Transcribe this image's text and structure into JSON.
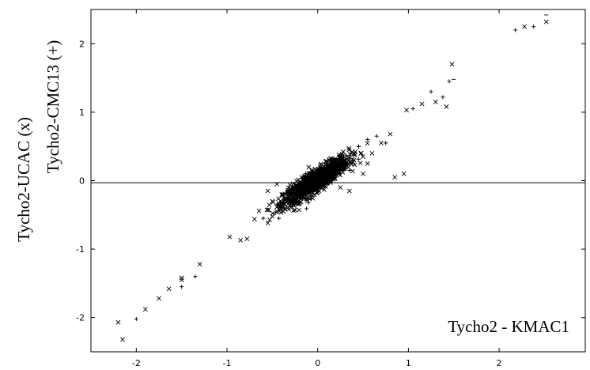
{
  "chart_data": {
    "type": "scatter",
    "title": "",
    "xlabel": "",
    "ylabel_1": "Tycho2-UCAC (x)",
    "ylabel_2": "Tycho2-CMC13 (+)",
    "annotation": "Tycho2 - KMAC1",
    "xlim": [
      -2.5,
      2.95
    ],
    "ylim": [
      -2.5,
      2.5
    ],
    "xticks": [
      -2,
      -1,
      0,
      1,
      2
    ],
    "yticks": [
      -2,
      -1,
      0,
      1,
      2
    ],
    "grid": false,
    "reference_line_y": -0.03,
    "series": [
      {
        "marker": "x",
        "points": [
          [
            -2.15,
            -2.32
          ],
          [
            -2.2,
            -2.07
          ],
          [
            -1.9,
            -1.88
          ],
          [
            -1.75,
            -1.72
          ],
          [
            -1.64,
            -1.58
          ],
          [
            -1.5,
            -1.45
          ],
          [
            -1.5,
            -1.42
          ],
          [
            -1.3,
            -1.22
          ],
          [
            -0.97,
            -0.82
          ],
          [
            -0.85,
            -0.87
          ],
          [
            -0.78,
            -0.85
          ],
          [
            -0.55,
            -0.62
          ],
          [
            -0.5,
            -0.52
          ],
          [
            -0.45,
            -0.45
          ],
          [
            -0.5,
            -0.3
          ],
          [
            -0.55,
            -0.15
          ],
          [
            -0.45,
            -0.05
          ],
          [
            -0.3,
            -0.2
          ],
          [
            -0.2,
            -0.15
          ],
          [
            -0.1,
            -0.08
          ],
          [
            0.0,
            0.0
          ],
          [
            0.1,
            0.05
          ],
          [
            0.2,
            0.1
          ],
          [
            0.3,
            0.2
          ],
          [
            0.4,
            0.3
          ],
          [
            0.5,
            0.35
          ],
          [
            0.55,
            0.25
          ],
          [
            0.6,
            0.4
          ],
          [
            0.7,
            0.55
          ],
          [
            0.25,
            -0.1
          ],
          [
            0.35,
            -0.15
          ],
          [
            0.5,
            0.1
          ],
          [
            0.85,
            0.05
          ],
          [
            0.95,
            0.1
          ],
          [
            0.8,
            0.68
          ],
          [
            0.98,
            1.03
          ],
          [
            1.15,
            1.12
          ],
          [
            1.3,
            1.15
          ],
          [
            1.42,
            1.08
          ],
          [
            1.48,
            1.7
          ],
          [
            2.28,
            2.25
          ],
          [
            2.52,
            2.32
          ]
        ]
      },
      {
        "marker": "+",
        "points": [
          [
            -2.0,
            -2.02
          ],
          [
            -1.5,
            -1.55
          ],
          [
            -1.35,
            -1.4
          ],
          [
            -0.6,
            -0.55
          ],
          [
            -0.45,
            -0.35
          ],
          [
            -0.3,
            -0.3
          ],
          [
            -0.15,
            -0.1
          ],
          [
            -0.05,
            0.05
          ],
          [
            0.05,
            0.0
          ],
          [
            0.15,
            0.15
          ],
          [
            0.25,
            0.25
          ],
          [
            0.35,
            0.15
          ],
          [
            0.45,
            0.5
          ],
          [
            0.55,
            0.6
          ],
          [
            0.65,
            0.65
          ],
          [
            0.75,
            0.55
          ],
          [
            1.05,
            1.05
          ],
          [
            1.25,
            1.3
          ],
          [
            1.38,
            1.22
          ],
          [
            1.45,
            1.45
          ],
          [
            2.18,
            2.2
          ],
          [
            2.38,
            2.25
          ]
        ]
      },
      {
        "marker": "-",
        "points": [
          [
            1.5,
            1.48
          ],
          [
            2.52,
            2.42
          ]
        ]
      }
    ],
    "cluster": {
      "marker": "x",
      "count": 1200,
      "center": [
        -0.02,
        0.0
      ],
      "slope": 0.85,
      "spread_x": 0.18,
      "spread_y": 0.08
    }
  }
}
